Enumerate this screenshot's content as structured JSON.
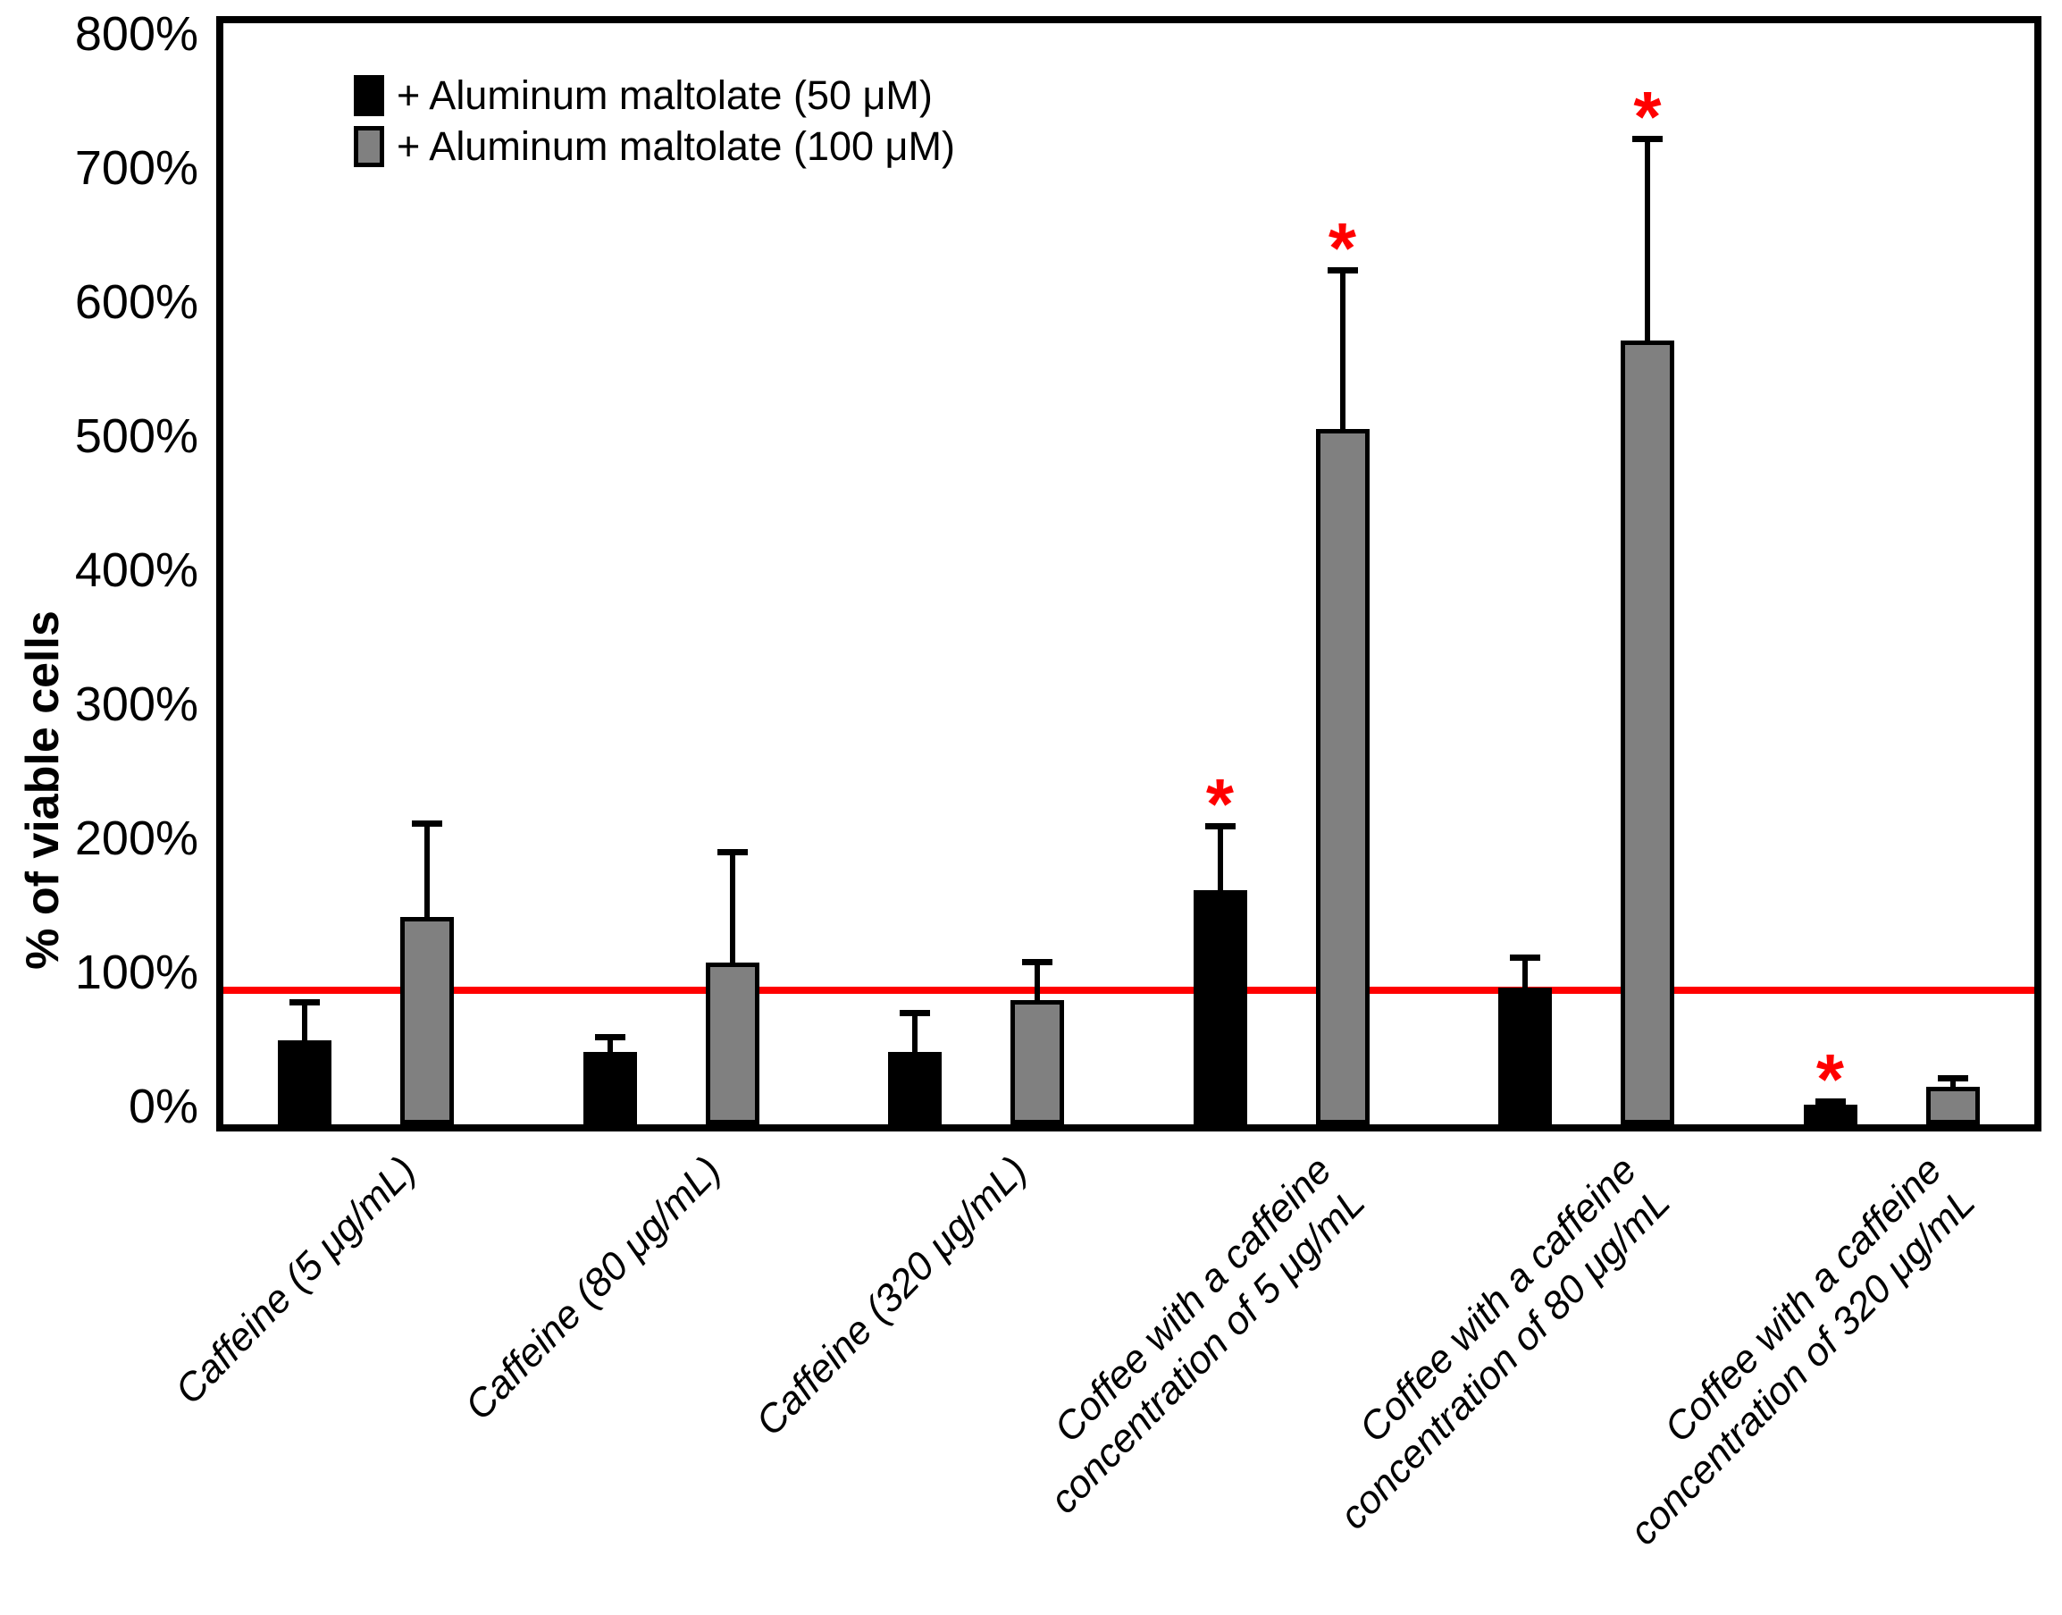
{
  "figure": {
    "background": "#ffffff",
    "frame_color": "#000000"
  },
  "chart_data": {
    "type": "bar",
    "title": "",
    "xlabel": "",
    "ylabel": "% of viable cells",
    "ylim": [
      0,
      821
    ],
    "y_tick_step": 100,
    "y_tick_labels": [
      "0%",
      "100%",
      "200%",
      "300%",
      "400%",
      "500%",
      "600%",
      "700%",
      "800%"
    ],
    "grid": false,
    "legend_position": "top-left",
    "reference_line": {
      "value": 100,
      "color": "#ff0000"
    },
    "significance_marker": "*",
    "significance_color": "#ff0000",
    "error_bars": "upper only",
    "categories": [
      "Caffeine (5 μg/mL)",
      "Caffeine (80 μg/mL)",
      "Caffeine (320 μg/mL)",
      "Coffee with a caffeine concentration of 5 μg/mL",
      "Coffee with a caffeine concentration of 80 μg/mL",
      "Coffee with a caffeine concentration of 320 μg/mL"
    ],
    "category_label_lines": [
      [
        "Caffeine (5 μg/mL)"
      ],
      [
        "Caffeine (80 μg/mL)"
      ],
      [
        "Caffeine (320 μg/mL)"
      ],
      [
        "Coffee with a caffeine",
        "concentration of 5 μg/mL"
      ],
      [
        "Coffee with a caffeine",
        "concentration of 80 μg/mL"
      ],
      [
        "Coffee with a caffeine",
        "concentration of 320 μg/mL"
      ]
    ],
    "series": [
      {
        "name": "+ Aluminum maltolate (50 μM)",
        "color": "#000000",
        "values": [
          63,
          54,
          54,
          175,
          102,
          15
        ],
        "error_upper": [
          30,
          13,
          31,
          49,
          24,
          4
        ],
        "significant": [
          false,
          false,
          false,
          true,
          false,
          true
        ]
      },
      {
        "name": "+ Aluminum maltolate (100 μM)",
        "color": "#808080",
        "values": [
          155,
          121,
          93,
          519,
          585,
          28
        ],
        "error_upper": [
          71,
          84,
          30,
          120,
          152,
          8
        ],
        "significant": [
          false,
          false,
          false,
          true,
          true,
          false
        ]
      }
    ]
  }
}
